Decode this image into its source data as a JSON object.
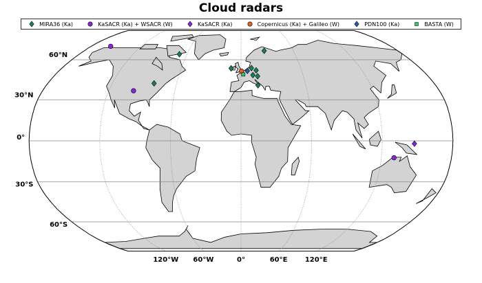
{
  "title": "Cloud radars",
  "legend": [
    {
      "label": "MIRA36 (Ka)",
      "marker": "diamond",
      "color": "#1b7f5a"
    },
    {
      "label": "KaSACR (Ka) + WSACR (W)",
      "marker": "circle",
      "color": "#8b25d9"
    },
    {
      "label": "KaSACR (Ka)",
      "marker": "diamond",
      "color": "#8b25d9"
    },
    {
      "label": "Copernicus (Ka) + Galileo (W)",
      "marker": "circle",
      "color": "#e8601c"
    },
    {
      "label": "PDN100 (Ka)",
      "marker": "diamond",
      "color": "#2a5caa"
    },
    {
      "label": "BASTA (W)",
      "marker": "square",
      "color": "#2ecc71"
    }
  ],
  "lat_labels": [
    {
      "lat": 60,
      "label": "60°N"
    },
    {
      "lat": 30,
      "label": "30°N"
    },
    {
      "lat": 0,
      "label": "0°"
    },
    {
      "lat": -30,
      "label": "30°S"
    },
    {
      "lat": -60,
      "label": "60°S"
    }
  ],
  "lon_labels": [
    {
      "lon": -120,
      "label": "120°W"
    },
    {
      "lon": -60,
      "label": "60°W"
    },
    {
      "lon": 0,
      "label": "0°"
    },
    {
      "lon": 60,
      "label": "60°E"
    },
    {
      "lon": 120,
      "label": "120°E"
    }
  ],
  "land_color": "#d3d3d3",
  "sites": [
    {
      "type": 1,
      "lon": -156.6,
      "lat": 71.3
    },
    {
      "type": 1,
      "lon": -97.5,
      "lat": 36.6
    },
    {
      "type": 0,
      "lon": -68.5,
      "lat": 64.5
    },
    {
      "type": 0,
      "lon": -81,
      "lat": 42
    },
    {
      "type": 0,
      "lon": 26.6,
      "lat": 67.4
    },
    {
      "type": 0,
      "lon": -9.9,
      "lat": 53.3
    },
    {
      "type": 0,
      "lon": 10.5,
      "lat": 53.5
    },
    {
      "type": 0,
      "lon": 15,
      "lat": 51.8
    },
    {
      "type": 0,
      "lon": 11.5,
      "lat": 48.2
    },
    {
      "type": 0,
      "lon": 16,
      "lat": 47.3
    },
    {
      "type": 0,
      "lon": 15.7,
      "lat": 40.6
    },
    {
      "type": 3,
      "lon": 0.5,
      "lat": 51.2
    },
    {
      "type": 4,
      "lon": 6.3,
      "lat": 51.4
    },
    {
      "type": 5,
      "lon": 2.2,
      "lat": 48.7
    },
    {
      "type": 1,
      "lon": 130.9,
      "lat": -12.4
    },
    {
      "type": 2,
      "lon": 147.4,
      "lat": -2.1
    }
  ]
}
